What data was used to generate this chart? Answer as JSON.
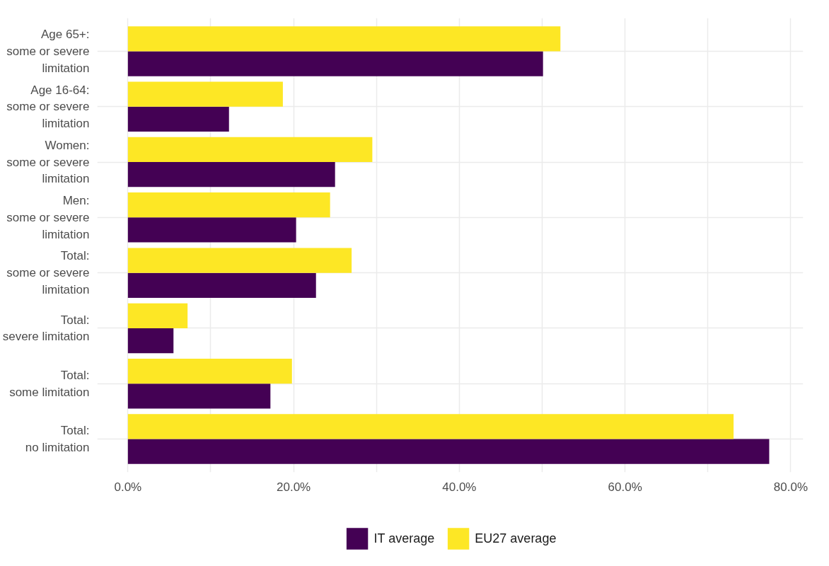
{
  "chart_data": {
    "type": "bar",
    "orientation": "horizontal",
    "categories": [
      "Age 65+:\nsome or severe\nlimitation",
      "Age 16-64:\nsome or severe\nlimitation",
      "Women:\nsome or severe\nlimitation",
      "Men:\nsome or severe\nlimitation",
      "Total:\nsome or severe\nlimitation",
      "Total:\nsevere limitation",
      "Total:\nsome limitation",
      "Total:\nno limitation"
    ],
    "series": [
      {
        "name": "IT average",
        "color": "#440154",
        "values": [
          50.1,
          12.2,
          25.0,
          20.3,
          22.7,
          5.5,
          17.2,
          77.4
        ]
      },
      {
        "name": "EU27 average",
        "color": "#fde725",
        "values": [
          52.2,
          18.7,
          29.5,
          24.4,
          27.0,
          7.2,
          19.8,
          73.1
        ]
      }
    ],
    "xlim": [
      -3.7,
      81.5
    ],
    "xticks": [
      {
        "value": 0,
        "label": "0.0%"
      },
      {
        "value": 10,
        "label": null
      },
      {
        "value": 20,
        "label": "20.0%"
      },
      {
        "value": 30,
        "label": null
      },
      {
        "value": 40,
        "label": "40.0%"
      },
      {
        "value": 50,
        "label": null
      },
      {
        "value": 60,
        "label": "60.0%"
      },
      {
        "value": 70,
        "label": null
      },
      {
        "value": 80,
        "label": "80.0%"
      }
    ],
    "grid": true,
    "legend": "bottom"
  }
}
